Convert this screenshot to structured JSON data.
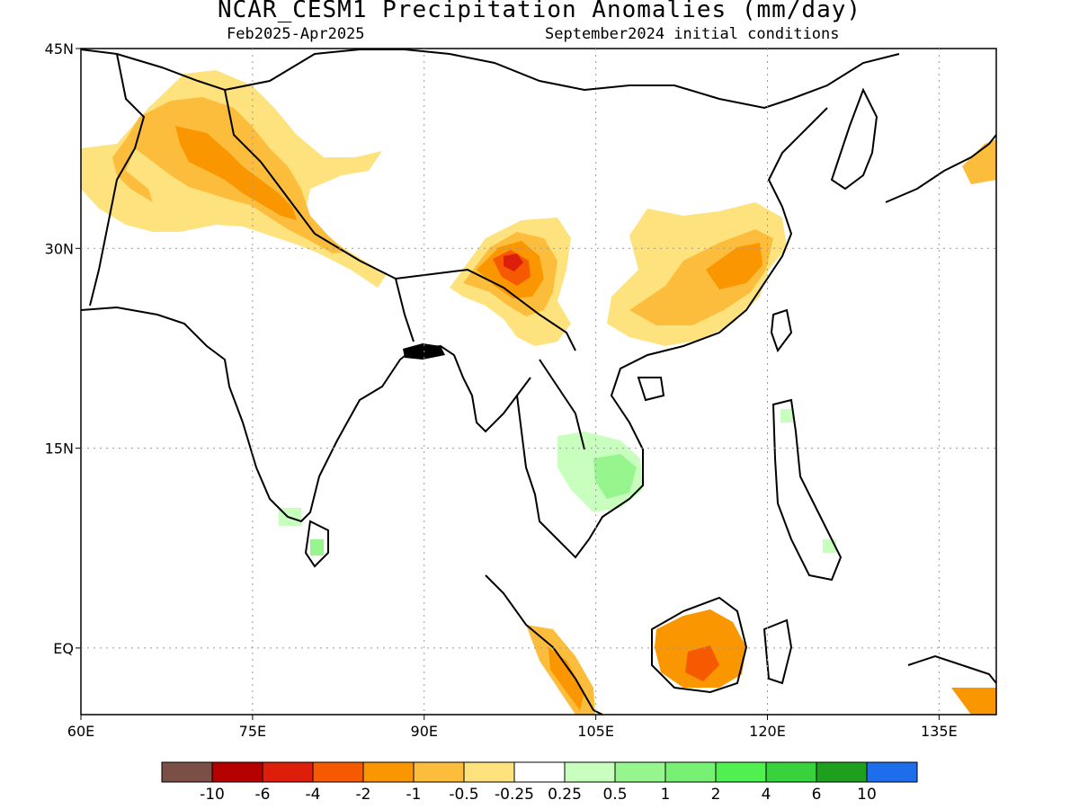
{
  "header": {
    "title": "NCAR_CESM1 Precipitation Anomalies (mm/day)",
    "period": "Feb2025-Apr2025",
    "init": "September2024 initial conditions"
  },
  "map": {
    "lon_range": [
      60,
      140
    ],
    "lat_range": [
      -5,
      45
    ],
    "lon_ticks": [
      "60E",
      "75E",
      "90E",
      "105E",
      "120E",
      "135E"
    ],
    "lat_ticks": [
      "45N",
      "30N",
      "15N",
      "EQ"
    ],
    "grid": "dotted"
  },
  "colorbar": {
    "labels": [
      "-10",
      "-6",
      "-4",
      "-2",
      "-1",
      "-0.5",
      "-0.25",
      "0.25",
      "0.5",
      "1",
      "2",
      "4",
      "6",
      "10"
    ],
    "colors": [
      "#7a5046",
      "#b50000",
      "#dc1e0a",
      "#f55a00",
      "#fa9600",
      "#fcbd3c",
      "#fde27e",
      "#ffffff",
      "#c8ffbe",
      "#96f58c",
      "#78f073",
      "#50f050",
      "#37d23c",
      "#1ea01e",
      "#1e6eeb"
    ]
  }
}
